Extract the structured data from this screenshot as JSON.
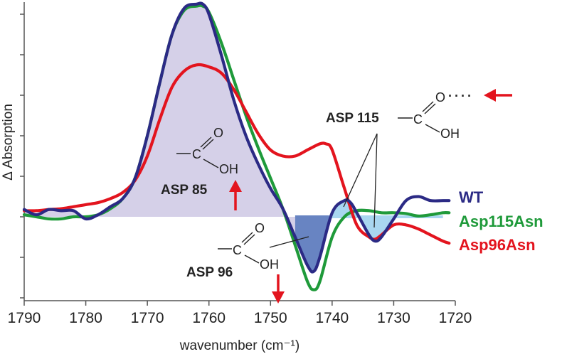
{
  "chart_data": {
    "type": "line",
    "title": "",
    "xlabel": "wavenumber (cm⁻¹)",
    "ylabel": "Δ Absorption",
    "xlim": [
      1790,
      1720
    ],
    "ylim": [
      -2.2,
      5.3
    ],
    "x_ticks": [
      1790,
      1780,
      1770,
      1760,
      1750,
      1740,
      1730,
      1720
    ],
    "x_tick_labels": [
      "1790",
      "1780",
      "1770",
      "1760",
      "1750",
      "1740",
      "1730",
      "1720"
    ],
    "y_ticks": [
      -2,
      -1,
      0,
      1,
      2,
      3,
      4,
      5
    ],
    "grid": false,
    "legend_position": "right",
    "series": [
      {
        "name": "WT",
        "color": "#2b2a85",
        "x": [
          1790,
          1788,
          1786,
          1784,
          1782,
          1780,
          1778,
          1776,
          1774,
          1772,
          1770,
          1768,
          1766,
          1764,
          1762,
          1761,
          1760,
          1758,
          1756,
          1754,
          1752,
          1750,
          1748,
          1746,
          1744,
          1743,
          1742,
          1740,
          1738,
          1737,
          1736,
          1734,
          1733,
          1732,
          1730,
          1728,
          1726,
          1724,
          1722,
          1721
        ],
        "y": [
          0.18,
          0.05,
          0.18,
          0.15,
          0.15,
          -0.05,
          0.05,
          0.25,
          0.45,
          0.95,
          2.0,
          3.3,
          4.5,
          5.15,
          5.25,
          5.25,
          5.0,
          4.0,
          2.9,
          2.0,
          1.3,
          0.7,
          0.2,
          -0.5,
          -1.2,
          -1.35,
          -1.0,
          0.1,
          0.4,
          0.35,
          0.1,
          -0.45,
          -0.6,
          -0.5,
          -0.05,
          0.4,
          0.5,
          0.4,
          0.4,
          0.4
        ]
      },
      {
        "name": "Asp115Asn",
        "color": "#1f9a3a",
        "x": [
          1790,
          1788,
          1786,
          1784,
          1782,
          1780,
          1778,
          1776,
          1774,
          1772,
          1770,
          1768,
          1766,
          1764,
          1762,
          1761,
          1760,
          1758,
          1756,
          1754,
          1752,
          1750,
          1748,
          1746,
          1744,
          1743,
          1742,
          1740,
          1738,
          1736,
          1734,
          1732,
          1730,
          1728,
          1726,
          1724,
          1722,
          1721
        ],
        "y": [
          0.05,
          0.0,
          -0.05,
          -0.05,
          0.0,
          0.0,
          0.05,
          0.2,
          0.45,
          0.95,
          2.0,
          3.3,
          4.5,
          5.1,
          5.2,
          5.2,
          5.05,
          4.3,
          3.4,
          2.5,
          1.7,
          0.95,
          0.2,
          -0.7,
          -1.6,
          -1.8,
          -1.6,
          -0.5,
          0.0,
          0.15,
          0.15,
          0.1,
          0.1,
          0.08,
          0.02,
          0.05,
          0.1,
          0.1
        ]
      },
      {
        "name": "Asp96Asn",
        "color": "#e3141e",
        "x": [
          1790,
          1788,
          1786,
          1784,
          1782,
          1780,
          1778,
          1776,
          1774,
          1772,
          1770,
          1768,
          1766,
          1764,
          1762,
          1760,
          1758,
          1756,
          1754,
          1752,
          1750,
          1748,
          1746,
          1744,
          1742,
          1741,
          1740,
          1738,
          1736,
          1734,
          1733,
          1732,
          1730,
          1728,
          1726,
          1724,
          1722,
          1721
        ],
        "y": [
          0.15,
          0.15,
          0.18,
          0.2,
          0.25,
          0.3,
          0.35,
          0.45,
          0.6,
          0.9,
          1.5,
          2.4,
          3.2,
          3.6,
          3.75,
          3.7,
          3.55,
          3.15,
          2.6,
          2.05,
          1.65,
          1.5,
          1.5,
          1.65,
          1.8,
          1.8,
          1.65,
          0.7,
          -0.2,
          -0.5,
          -0.55,
          -0.45,
          -0.2,
          -0.2,
          -0.3,
          -0.45,
          -0.6,
          -0.65
        ]
      }
    ],
    "shaded_regions": [
      {
        "label": "ASP 85",
        "series": "WT",
        "from": 1790,
        "to": 1746,
        "color": "#d5d0e8"
      },
      {
        "label": "ASP 96",
        "series": "WT",
        "from": 1746,
        "to": 1740.5,
        "color": "#6884c2"
      },
      {
        "label": "ASP 115",
        "series": "WT",
        "from": 1740.5,
        "to": 1730,
        "color": "#a9d6f0"
      }
    ],
    "annotations": [
      {
        "id": "asp85",
        "label": "ASP 85",
        "chem_c": "C",
        "chem_o": "O",
        "chem_oh": "OH",
        "arrow": "up"
      },
      {
        "id": "asp96",
        "label": "ASP 96",
        "chem_c": "C",
        "chem_o": "O",
        "chem_oh": "OH",
        "arrow": "down"
      },
      {
        "id": "asp115",
        "label": "ASP 115",
        "chem_c": "C",
        "chem_o": "O",
        "chem_oh": "OH",
        "hbond": "····",
        "arrow": "left"
      }
    ],
    "arrow_color": "#e3141e"
  }
}
